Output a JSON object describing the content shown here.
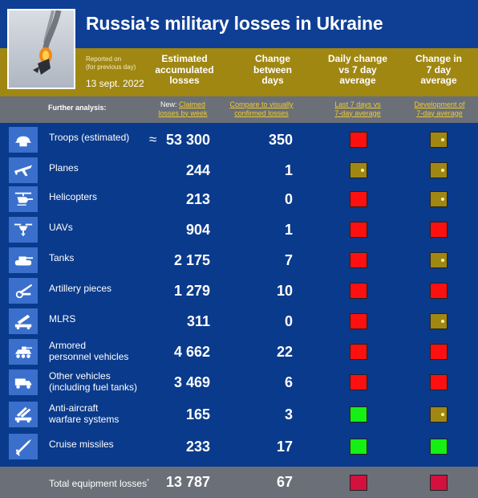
{
  "header": {
    "title": "Russia's military losses in Ukraine",
    "reported_line1": "Reported on",
    "reported_line2": "(for previous day)",
    "date": "13 sept. 2022",
    "col_estimated": [
      "Estimated",
      "accumulated",
      "losses"
    ],
    "col_change": [
      "Change",
      "between",
      "days"
    ],
    "col_daily": [
      "Daily change",
      "vs 7 day",
      "average"
    ],
    "col_avg": [
      "Change in",
      "7 day",
      "average"
    ]
  },
  "further": {
    "label": "Further analysis:",
    "new_prefix": "New: ",
    "link1_a": "Claimed",
    "link1_b": "losses by week",
    "link2_a": "Compare to visually",
    "link2_b": "confirmed losses",
    "link3_a": "Last 7 days vs",
    "link3_b": "7-day average",
    "link4_a": "Development of",
    "link4_b": "7-day average"
  },
  "rows": [
    {
      "label1": "Troops (estimated)",
      "label2": "",
      "approx": "≈",
      "value": "53 300",
      "change": "350",
      "daily": "red",
      "avg": "gold",
      "icon": "helmet-icon"
    },
    {
      "label1": "Planes",
      "label2": "",
      "approx": "",
      "value": "244",
      "change": "1",
      "daily": "gold",
      "avg": "gold",
      "icon": "plane-icon"
    },
    {
      "label1": "Helicopters",
      "label2": "",
      "approx": "",
      "value": "213",
      "change": "0",
      "daily": "red",
      "avg": "gold",
      "icon": "helicopter-icon"
    },
    {
      "label1": "UAVs",
      "label2": "",
      "approx": "",
      "value": "904",
      "change": "1",
      "daily": "red",
      "avg": "red",
      "icon": "drone-icon"
    },
    {
      "label1": "Tanks",
      "label2": "",
      "approx": "",
      "value": "2 175",
      "change": "7",
      "daily": "red",
      "avg": "gold",
      "icon": "tank-icon"
    },
    {
      "label1": "Artillery pieces",
      "label2": "",
      "approx": "",
      "value": "1 279",
      "change": "10",
      "daily": "red",
      "avg": "red",
      "icon": "artillery-icon"
    },
    {
      "label1": "MLRS",
      "label2": "",
      "approx": "",
      "value": "311",
      "change": "0",
      "daily": "red",
      "avg": "gold",
      "icon": "rocket-launcher-icon"
    },
    {
      "label1": "Armored",
      "label2": "personnel vehicles",
      "approx": "",
      "value": "4 662",
      "change": "22",
      "daily": "red",
      "avg": "red",
      "icon": "apc-icon"
    },
    {
      "label1": "Other vehicles",
      "label2": "(including fuel tanks)",
      "approx": "",
      "value": "3 469",
      "change": "6",
      "daily": "red",
      "avg": "red",
      "icon": "truck-icon"
    },
    {
      "label1": "Anti-aircraft",
      "label2": "warfare systems",
      "approx": "",
      "value": "165",
      "change": "3",
      "daily": "green",
      "avg": "gold",
      "icon": "anti-aircraft-icon"
    },
    {
      "label1": "Cruise missiles",
      "label2": "",
      "approx": "",
      "value": "233",
      "change": "17",
      "daily": "green",
      "avg": "green",
      "icon": "missile-icon"
    }
  ],
  "footer": {
    "label": "Total equipment losses",
    "sup": "*",
    "value": "13 787",
    "change": "67",
    "daily": "dark",
    "avg": "dark"
  }
}
